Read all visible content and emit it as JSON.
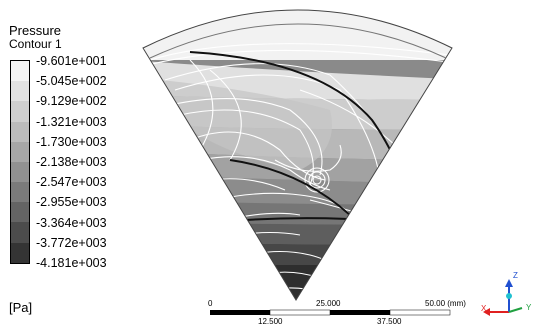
{
  "legend": {
    "title": "Pressure",
    "subtitle": "Contour 1",
    "unit": "[Pa]",
    "labels": [
      "-9.601e+001",
      "-5.045e+002",
      "-9.129e+002",
      "-1.321e+003",
      "-1.730e+003",
      "-2.138e+003",
      "-2.547e+003",
      "-2.955e+003",
      "-3.364e+003",
      "-3.772e+003",
      "-4.181e+003"
    ],
    "colors": [
      "#f4f4f4",
      "#e2e2e2",
      "#cfcfcf",
      "#bcbcbc",
      "#a7a7a7",
      "#919191",
      "#7b7b7b",
      "#646464",
      "#4c4c4c",
      "#343434"
    ]
  },
  "scale_bar": {
    "top_labels": [
      "0",
      "25.000",
      "50.00 (mm)"
    ],
    "bottom_labels": [
      "12.500",
      "37.500"
    ]
  },
  "axes": {
    "x": "X",
    "y": "Y",
    "z": "Z",
    "x_color": "#e02020",
    "y_color": "#20a040",
    "z_color": "#2050d0"
  }
}
